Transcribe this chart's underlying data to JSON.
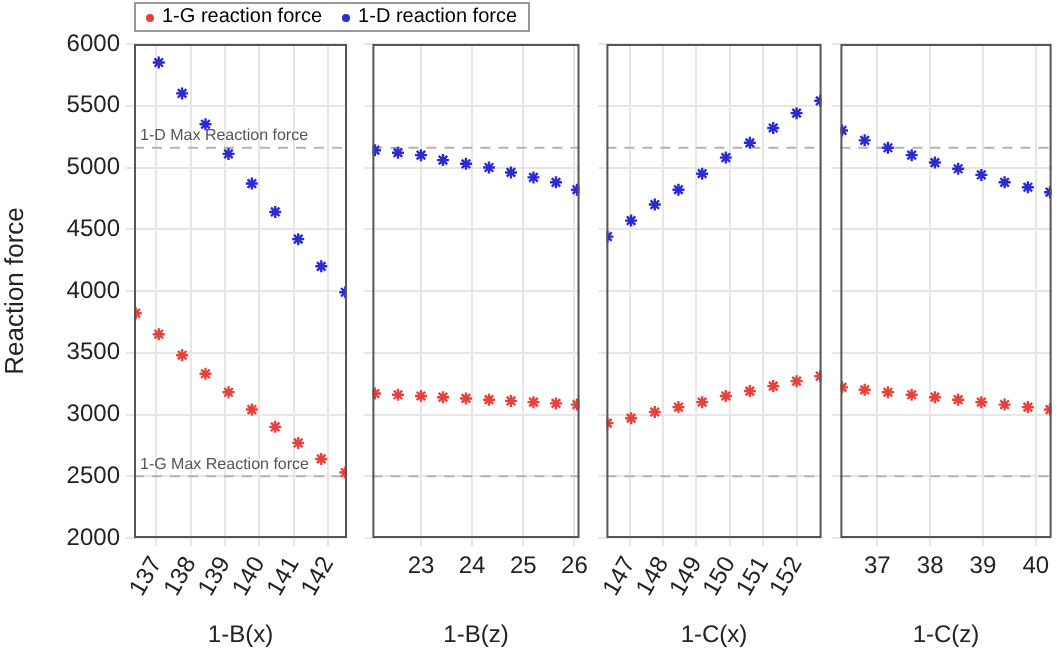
{
  "chart_data": [
    {
      "type": "scatter",
      "xlabel": "1-B(x)",
      "ylabel": "Reaction force",
      "legend": "top",
      "marker": "cross",
      "grid": true,
      "x": [
        136.4,
        137.07,
        137.75,
        138.43,
        139.1,
        139.78,
        140.46,
        141.13,
        141.8,
        142.5
      ],
      "xlim": [
        136.35,
        142.55
      ],
      "xticks": [
        137,
        138,
        139,
        140,
        141,
        142
      ],
      "ylim": [
        2000,
        6000
      ],
      "yticks": [
        2000,
        2500,
        3000,
        3500,
        4000,
        4500,
        5000,
        5500,
        6000
      ],
      "series": [
        {
          "name": "1-G reaction force",
          "color": "#e8413c",
          "values": [
            3820,
            3650,
            3480,
            3330,
            3180,
            3040,
            2900,
            2770,
            2640,
            2530
          ]
        },
        {
          "name": "1-D reaction force",
          "color": "#2b2bd6",
          "values": [
            null,
            5850,
            5600,
            5350,
            5110,
            4870,
            4640,
            4420,
            4200,
            3990
          ]
        }
      ],
      "ref_lines": [
        {
          "axis": "y",
          "value": 5160,
          "label": "1-D Max Reaction force",
          "color": "#b4b4b4",
          "line_style": "dashed"
        },
        {
          "axis": "y",
          "value": 2500,
          "label": "1-G Max Reaction force",
          "color": "#b4b4b4",
          "line_style": "dashed"
        }
      ]
    },
    {
      "type": "scatter",
      "xlabel": "1-B(z)",
      "marker": "cross",
      "grid": true,
      "tick_labels": "x",
      "x": [
        22.1,
        22.55,
        23,
        23.43,
        23.88,
        24.33,
        24.76,
        25.2,
        25.64,
        26.05
      ],
      "xlim": [
        22.05,
        26.1
      ],
      "xticks": [
        23,
        24,
        25,
        26
      ],
      "ylim": [
        2000,
        6000
      ],
      "yticks": [
        2000,
        2500,
        3000,
        3500,
        4000,
        4500,
        5000,
        5500,
        6000
      ],
      "series": [
        {
          "color": "#e8413c",
          "values": [
            3170,
            3160,
            3150,
            3140,
            3130,
            3120,
            3110,
            3100,
            3090,
            3080
          ]
        },
        {
          "color": "#2b2bd6",
          "values": [
            5140,
            5120,
            5100,
            5060,
            5030,
            5000,
            4960,
            4920,
            4880,
            4820
          ]
        }
      ],
      "ref_lines": [
        {
          "axis": "y",
          "value": 5160,
          "color": "#b4b4b4",
          "line_style": "dashed"
        },
        {
          "axis": "y",
          "value": 2500,
          "color": "#b4b4b4",
          "line_style": "dashed"
        }
      ]
    },
    {
      "type": "scatter",
      "xlabel": "1-C(x)",
      "marker": "cross",
      "grid": true,
      "tick_labels": "x",
      "x": [
        146.33,
        147.04,
        147.75,
        148.46,
        149.17,
        149.88,
        150.6,
        151.3,
        152,
        152.71
      ],
      "xlim": [
        146.3,
        152.75
      ],
      "xticks": [
        147,
        148,
        149,
        150,
        151,
        152
      ],
      "ylim": [
        2000,
        6000
      ],
      "yticks": [
        2000,
        2500,
        3000,
        3500,
        4000,
        4500,
        5000,
        5500,
        6000
      ],
      "series": [
        {
          "color": "#e8413c",
          "values": [
            2930,
            2970,
            3020,
            3060,
            3100,
            3150,
            3190,
            3230,
            3270,
            3310
          ]
        },
        {
          "color": "#2b2bd6",
          "values": [
            4440,
            4570,
            4700,
            4820,
            4950,
            5080,
            5200,
            5320,
            5440,
            5540
          ]
        }
      ],
      "ref_lines": [
        {
          "axis": "y",
          "value": 5160,
          "color": "#b4b4b4",
          "line_style": "dashed"
        },
        {
          "axis": "y",
          "value": 2500,
          "color": "#b4b4b4",
          "line_style": "dashed"
        }
      ]
    },
    {
      "type": "scatter",
      "xlabel": "1-C(z)",
      "marker": "cross",
      "grid": true,
      "tick_labels": "x",
      "x": [
        36.33,
        36.76,
        37.2,
        37.65,
        38.09,
        38.53,
        38.97,
        39.41,
        39.85,
        40.27
      ],
      "xlim": [
        36.3,
        40.3
      ],
      "xticks": [
        37,
        38,
        39,
        40
      ],
      "ylim": [
        2000,
        6000
      ],
      "yticks": [
        2000,
        2500,
        3000,
        3500,
        4000,
        4500,
        5000,
        5500,
        6000
      ],
      "series": [
        {
          "color": "#e8413c",
          "values": [
            3220,
            3200,
            3180,
            3160,
            3140,
            3120,
            3100,
            3080,
            3060,
            3040
          ]
        },
        {
          "color": "#2b2bd6",
          "values": [
            5300,
            5220,
            5160,
            5100,
            5040,
            4990,
            4940,
            4880,
            4840,
            4800
          ]
        }
      ],
      "ref_lines": [
        {
          "axis": "y",
          "value": 5160,
          "color": "#b4b4b4",
          "line_style": "dashed"
        },
        {
          "axis": "y",
          "value": 2500,
          "color": "#b4b4b4",
          "line_style": "dashed"
        }
      ]
    }
  ]
}
